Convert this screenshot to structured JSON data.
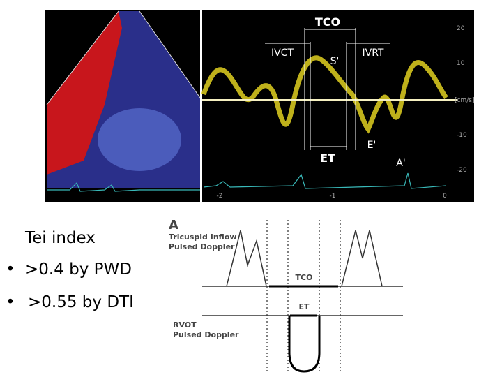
{
  "doppler": {
    "tco": "TCO",
    "ivct": "IVCT",
    "s_wave": "S'",
    "ivrt": "IVRT",
    "e_wave": "E'",
    "et": "ET",
    "a_wave": "A'",
    "y_ticks": [
      "20",
      "10",
      "[cm/s]",
      "-10",
      "-20"
    ],
    "x_ticks": [
      "-2",
      "-1",
      "0"
    ]
  },
  "bullets": {
    "heading": "Tei index",
    "items": [
      ">0.4 by PWD",
      ">0.55 by DTI"
    ]
  },
  "diagram": {
    "panel": "A",
    "top_label": [
      "Tricuspid Inflow",
      "Pulsed Doppler"
    ],
    "tco": "TCO",
    "et": "ET",
    "bottom_label": [
      "RVOT",
      "Pulsed Doppler"
    ]
  }
}
